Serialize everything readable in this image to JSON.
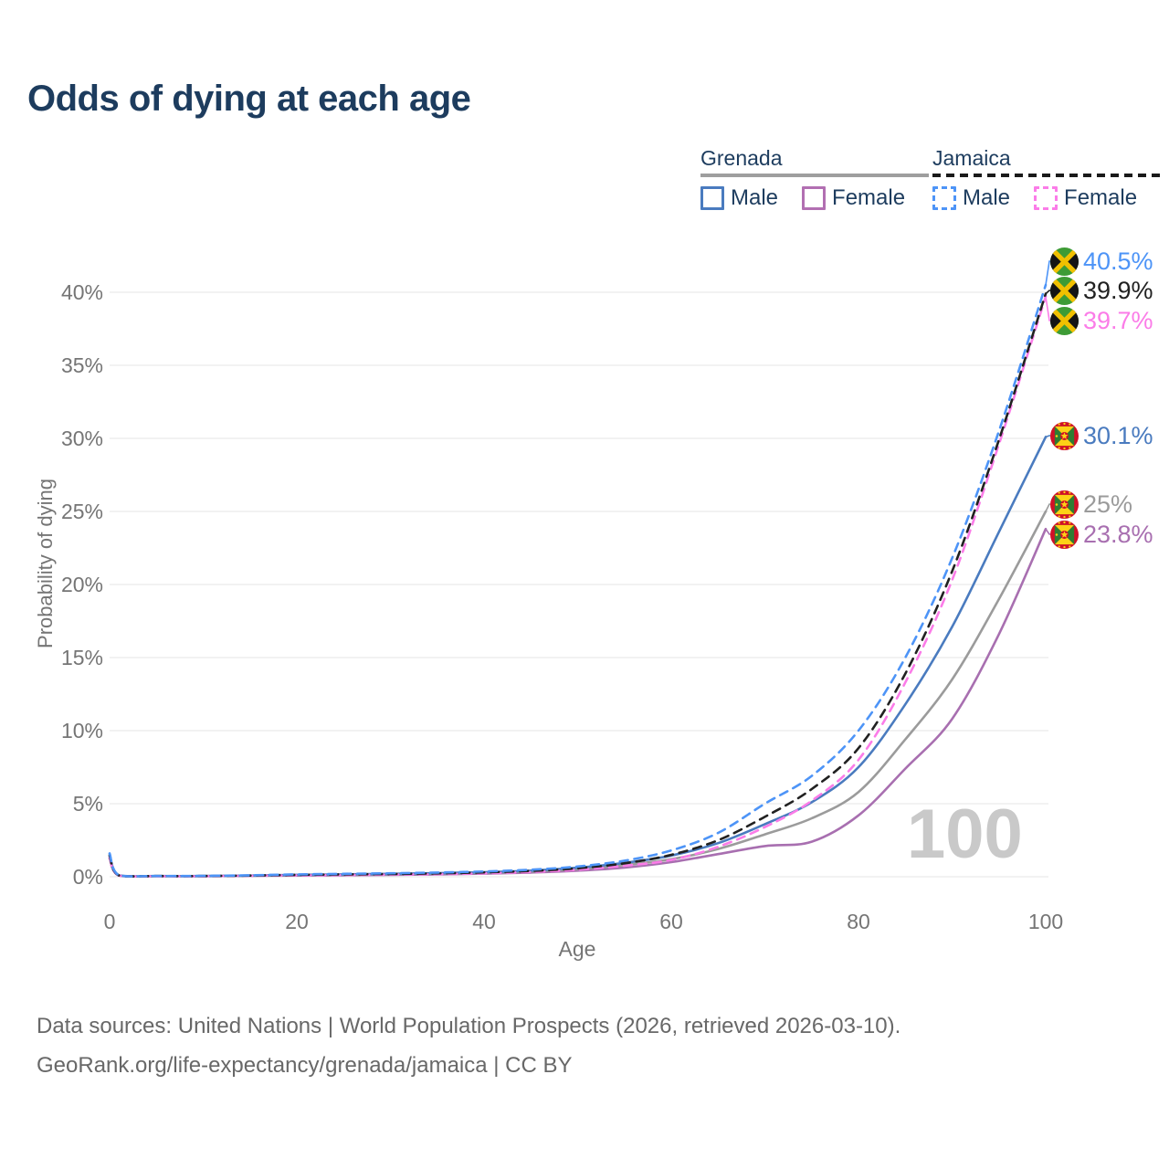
{
  "title": "Odds of dying at each age",
  "legend": {
    "groups": [
      {
        "name": "Grenada",
        "line_style": "solid",
        "line_color": "#9e9e9e",
        "items": [
          {
            "label": "Male",
            "color": "#4a7bbf"
          },
          {
            "label": "Female",
            "color": "#b26fb2"
          }
        ]
      },
      {
        "name": "Jamaica",
        "line_style": "dashed",
        "line_color": "#1a1a1a",
        "items": [
          {
            "label": "Male",
            "color": "#4d94f7"
          },
          {
            "label": "Female",
            "color": "#fb7ce8"
          }
        ]
      }
    ]
  },
  "chart_data": {
    "type": "line",
    "title": "Odds of dying at each age",
    "xlabel": "Age",
    "ylabel": "Probability of dying",
    "xlim": [
      0,
      100
    ],
    "ylim": [
      0,
      42.5
    ],
    "grid": "horizontal",
    "legend_position": "top-right",
    "watermark": "100",
    "x_ticks": [
      {
        "label": "0",
        "value": 0
      },
      {
        "label": "20",
        "value": 20
      },
      {
        "label": "40",
        "value": 40
      },
      {
        "label": "60",
        "value": 60
      },
      {
        "label": "80",
        "value": 80
      },
      {
        "label": "100",
        "value": 100
      }
    ],
    "y_ticks": [
      {
        "label": "0%",
        "value": 0
      },
      {
        "label": "5%",
        "value": 5
      },
      {
        "label": "10%",
        "value": 10
      },
      {
        "label": "15%",
        "value": 15
      },
      {
        "label": "20%",
        "value": 20
      },
      {
        "label": "25%",
        "value": 25
      },
      {
        "label": "30%",
        "value": 30
      },
      {
        "label": "35%",
        "value": 35
      },
      {
        "label": "40%",
        "value": 40
      }
    ],
    "x": [
      0,
      1,
      5,
      10,
      15,
      20,
      25,
      30,
      35,
      40,
      45,
      50,
      55,
      60,
      65,
      70,
      75,
      80,
      85,
      90,
      95,
      100
    ],
    "series": [
      {
        "name": "Jamaica Male",
        "country": "Jamaica",
        "sex": "Male",
        "color": "#4d94f7",
        "dashed": true,
        "end_label": "40.5%",
        "flag": "jamaica",
        "values": [
          1.6,
          0.1,
          0.05,
          0.06,
          0.1,
          0.16,
          0.2,
          0.24,
          0.29,
          0.36,
          0.48,
          0.7,
          1.1,
          1.8,
          3.0,
          5.0,
          6.9,
          10.0,
          15.0,
          21.8,
          30.5,
          40.5
        ]
      },
      {
        "name": "Jamaica",
        "country": "Jamaica",
        "sex": "",
        "color": "#212121",
        "dashed": true,
        "end_label": "39.9%",
        "flag": "jamaica",
        "values": [
          1.45,
          0.09,
          0.05,
          0.05,
          0.08,
          0.13,
          0.16,
          0.19,
          0.23,
          0.3,
          0.4,
          0.58,
          0.92,
          1.5,
          2.5,
          4.1,
          6.0,
          8.8,
          13.9,
          20.9,
          29.9,
          39.9
        ]
      },
      {
        "name": "Jamaica Female",
        "country": "Jamaica",
        "sex": "Female",
        "color": "#fb7ce8",
        "dashed": true,
        "end_label": "39.7%",
        "flag": "jamaica",
        "values": [
          1.3,
          0.08,
          0.04,
          0.04,
          0.07,
          0.1,
          0.12,
          0.15,
          0.18,
          0.24,
          0.33,
          0.48,
          0.75,
          1.15,
          2.05,
          3.4,
          5.2,
          8.0,
          13.3,
          20.3,
          29.6,
          39.7
        ]
      },
      {
        "name": "Grenada Male",
        "country": "Grenada",
        "sex": "Male",
        "color": "#4a7bbf",
        "dashed": false,
        "end_label": "30.1%",
        "flag": "grenada",
        "values": [
          1.55,
          0.1,
          0.05,
          0.05,
          0.08,
          0.13,
          0.16,
          0.2,
          0.25,
          0.31,
          0.42,
          0.62,
          0.95,
          1.45,
          2.3,
          3.6,
          5.1,
          7.5,
          11.8,
          17.1,
          23.6,
          30.1
        ]
      },
      {
        "name": "Grenada",
        "country": "Grenada",
        "sex": "",
        "color": "#9b9b9b",
        "dashed": false,
        "end_label": "25%",
        "flag": "grenada",
        "values": [
          1.4,
          0.09,
          0.04,
          0.05,
          0.07,
          0.11,
          0.14,
          0.17,
          0.21,
          0.27,
          0.36,
          0.52,
          0.8,
          1.2,
          1.9,
          2.9,
          4.0,
          5.8,
          9.4,
          13.5,
          19.0,
          25.0
        ]
      },
      {
        "name": "Grenada Female",
        "country": "Grenada",
        "sex": "Female",
        "color": "#a86fb0",
        "dashed": false,
        "end_label": "23.8%",
        "flag": "grenada",
        "values": [
          1.25,
          0.08,
          0.04,
          0.04,
          0.06,
          0.08,
          0.1,
          0.13,
          0.16,
          0.21,
          0.29,
          0.42,
          0.63,
          1.0,
          1.55,
          2.1,
          2.4,
          4.2,
          7.4,
          10.8,
          16.6,
          23.8
        ]
      }
    ]
  },
  "footer": {
    "line1": "Data sources: United Nations | World Population Prospects (2026, retrieved 2026-03-10).",
    "line2": "GeoRank.org/life-expectancy/grenada/jamaica | CC BY"
  }
}
